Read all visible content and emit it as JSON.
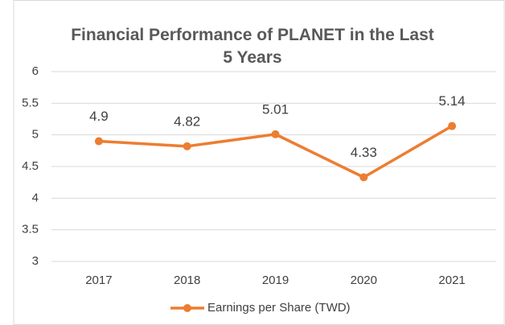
{
  "chart_data": {
    "type": "line",
    "title": "Financial Performance of PLANET in the Last 5 Years",
    "categories": [
      "2017",
      "2018",
      "2019",
      "2020",
      "2021"
    ],
    "series": [
      {
        "name": "Earnings per Share (TWD)",
        "color": "#ed7d31",
        "values": [
          4.9,
          4.82,
          5.01,
          4.33,
          5.14
        ]
      }
    ],
    "ylim": [
      3,
      6
    ],
    "yticks": [
      3,
      3.5,
      4,
      4.5,
      5,
      5.5,
      6
    ],
    "grid": true,
    "legend": "bottom"
  }
}
